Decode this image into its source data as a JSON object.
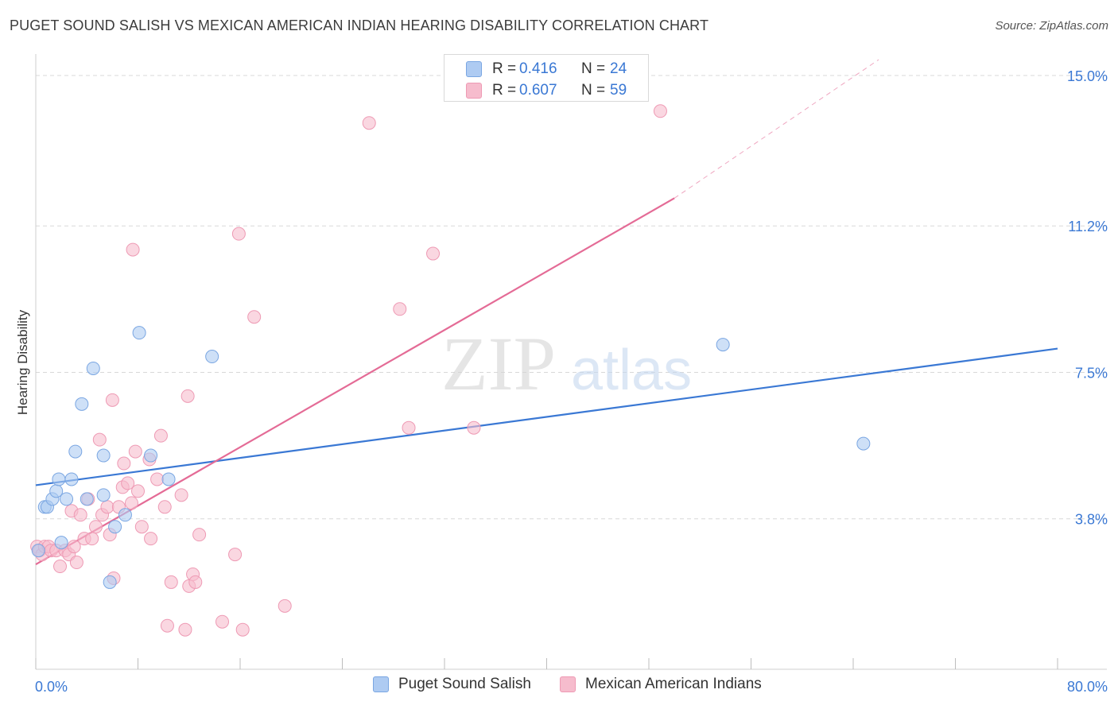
{
  "title": "PUGET SOUND SALISH VS MEXICAN AMERICAN INDIAN HEARING DISABILITY CORRELATION CHART",
  "source": "Source: ZipAtlas.com",
  "watermark": {
    "zip": "ZIP",
    "atlas": "atlas"
  },
  "legend_top": {
    "rows": [
      {
        "r_label": "R =",
        "r_value": "0.416",
        "n_label": "N =",
        "n_value": "24"
      },
      {
        "r_label": "R =",
        "r_value": "0.607",
        "n_label": "N =",
        "n_value": "59"
      }
    ]
  },
  "legend_bottom": [
    {
      "label": "Puget Sound Salish"
    },
    {
      "label": "Mexican American Indians"
    }
  ],
  "colors": {
    "blue_fill": "#aecbf2",
    "blue_stroke": "#7aa6e2",
    "blue_line": "#3a78d4",
    "pink_fill": "#f6bccd",
    "pink_stroke": "#ee9ab4",
    "pink_line": "#e46b96",
    "tick_label": "#3a78d4",
    "grid": "#d8d8d8"
  },
  "chart_data": {
    "type": "scatter",
    "title": "PUGET SOUND SALISH VS MEXICAN AMERICAN INDIAN HEARING DISABILITY CORRELATION CHART",
    "xlabel": "",
    "ylabel": "Hearing Disability",
    "xlim": [
      0,
      80
    ],
    "ylim": [
      0,
      15.3
    ],
    "x_tick_labels": [
      "0.0%",
      "80.0%"
    ],
    "y_ticks": [
      3.8,
      7.5,
      11.2,
      15.0
    ],
    "y_tick_labels": [
      "3.8%",
      "7.5%",
      "11.2%",
      "15.0%"
    ],
    "grid": true,
    "series": [
      {
        "name": "Puget Sound Salish",
        "r": 0.416,
        "n": 24,
        "points": [
          [
            0.7,
            4.1
          ],
          [
            0.9,
            4.1
          ],
          [
            1.3,
            4.3
          ],
          [
            1.6,
            4.5
          ],
          [
            1.8,
            4.8
          ],
          [
            2.0,
            3.2
          ],
          [
            2.4,
            4.3
          ],
          [
            2.8,
            4.8
          ],
          [
            3.1,
            5.5
          ],
          [
            3.6,
            6.7
          ],
          [
            4.0,
            4.3
          ],
          [
            4.5,
            7.6
          ],
          [
            5.3,
            4.4
          ],
          [
            5.3,
            5.4
          ],
          [
            5.8,
            2.2
          ],
          [
            6.2,
            3.6
          ],
          [
            7.0,
            3.9
          ],
          [
            8.1,
            8.5
          ],
          [
            9.0,
            5.4
          ],
          [
            10.4,
            4.8
          ],
          [
            13.8,
            7.9
          ],
          [
            53.8,
            8.2
          ],
          [
            64.8,
            5.7
          ],
          [
            0.2,
            3.0
          ]
        ],
        "trend": {
          "x": [
            0,
            80
          ],
          "y": [
            4.65,
            8.1
          ]
        }
      },
      {
        "name": "Mexican American Indians",
        "r": 0.607,
        "n": 59,
        "points": [
          [
            0.1,
            3.1
          ],
          [
            0.3,
            3.0
          ],
          [
            0.5,
            2.9
          ],
          [
            0.7,
            3.1
          ],
          [
            1.0,
            3.1
          ],
          [
            1.2,
            3.0
          ],
          [
            1.6,
            3.0
          ],
          [
            1.9,
            2.6
          ],
          [
            2.3,
            3.0
          ],
          [
            2.6,
            2.9
          ],
          [
            2.8,
            4.0
          ],
          [
            3.0,
            3.1
          ],
          [
            3.2,
            2.7
          ],
          [
            3.5,
            3.9
          ],
          [
            3.8,
            3.3
          ],
          [
            4.1,
            4.3
          ],
          [
            4.4,
            3.3
          ],
          [
            4.7,
            3.6
          ],
          [
            5.0,
            5.8
          ],
          [
            5.2,
            3.9
          ],
          [
            5.6,
            4.1
          ],
          [
            5.8,
            3.4
          ],
          [
            6.0,
            6.8
          ],
          [
            6.1,
            2.3
          ],
          [
            6.5,
            4.1
          ],
          [
            6.8,
            4.6
          ],
          [
            6.9,
            5.2
          ],
          [
            7.2,
            4.7
          ],
          [
            7.5,
            4.2
          ],
          [
            7.6,
            10.6
          ],
          [
            7.8,
            5.5
          ],
          [
            8.0,
            4.5
          ],
          [
            8.3,
            3.6
          ],
          [
            8.9,
            5.3
          ],
          [
            9.0,
            3.3
          ],
          [
            9.5,
            4.8
          ],
          [
            9.8,
            5.9
          ],
          [
            10.1,
            4.1
          ],
          [
            10.3,
            1.1
          ],
          [
            10.6,
            2.2
          ],
          [
            11.4,
            4.4
          ],
          [
            11.7,
            1.0
          ],
          [
            11.9,
            6.9
          ],
          [
            12.0,
            2.1
          ],
          [
            12.3,
            2.4
          ],
          [
            12.5,
            2.2
          ],
          [
            12.8,
            3.4
          ],
          [
            14.6,
            1.2
          ],
          [
            15.6,
            2.9
          ],
          [
            15.9,
            11.0
          ],
          [
            16.2,
            1.0
          ],
          [
            17.1,
            8.9
          ],
          [
            19.5,
            1.6
          ],
          [
            26.1,
            13.8
          ],
          [
            28.5,
            9.1
          ],
          [
            29.2,
            6.1
          ],
          [
            31.1,
            10.5
          ],
          [
            34.3,
            6.1
          ],
          [
            48.9,
            14.1
          ]
        ],
        "trend": {
          "x": [
            0,
            50
          ],
          "y": [
            2.65,
            11.9
          ]
        },
        "trend_dashed": {
          "x": [
            50,
            66
          ],
          "y": [
            11.9,
            15.4
          ]
        }
      }
    ]
  }
}
